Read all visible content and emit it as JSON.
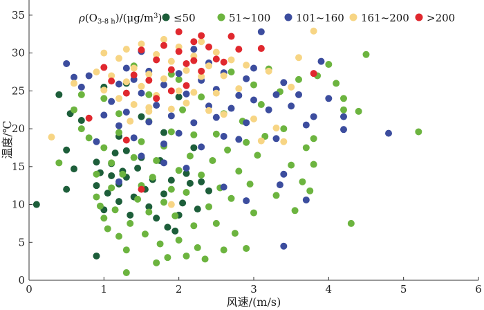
{
  "chart_data": {
    "type": "scatter",
    "xlabel": "风速/(m/s)",
    "ylabel": "温度/℃",
    "xlim": [
      0,
      6
    ],
    "ylim": [
      0,
      37
    ],
    "xticks": [
      "0",
      "1",
      "2",
      "3",
      "4",
      "5",
      "6"
    ],
    "yticks": [
      "0",
      "5",
      "10",
      "15",
      "20",
      "25",
      "30",
      "35"
    ],
    "legend": {
      "title": "ρ(O3-8 h)/(μg/m3)",
      "placement": "top",
      "items": [
        {
          "label": "≤50",
          "color": "#1d5e3a"
        },
        {
          "label": "51~100",
          "color": "#6cb43f"
        },
        {
          "label": "101~160",
          "color": "#3c4d9e"
        },
        {
          "label": "161~200",
          "color": "#f7d584"
        },
        {
          "label": ">200",
          "color": "#e0282e"
        }
      ]
    },
    "series": [
      {
        "name": "≤50",
        "color": "#1d5e3a",
        "points": [
          [
            0.1,
            10
          ],
          [
            0.4,
            24.5
          ],
          [
            0.5,
            17.2
          ],
          [
            0.6,
            14.7
          ],
          [
            0.9,
            3.2
          ],
          [
            0.9,
            15.6
          ],
          [
            0.9,
            12.5
          ],
          [
            0.95,
            14.2
          ],
          [
            1.0,
            9.3
          ],
          [
            1.05,
            11.5
          ],
          [
            1.1,
            13.8
          ],
          [
            1.1,
            15.4
          ],
          [
            1.15,
            16.8
          ],
          [
            1.2,
            12.7
          ],
          [
            1.2,
            10.4
          ],
          [
            1.25,
            14.4
          ],
          [
            1.3,
            13.6
          ],
          [
            1.3,
            17.1
          ],
          [
            1.35,
            8.6
          ],
          [
            1.4,
            11.0
          ],
          [
            1.45,
            14.8
          ],
          [
            1.5,
            16.2
          ],
          [
            1.55,
            12.0
          ],
          [
            1.6,
            9.7
          ],
          [
            1.65,
            13.3
          ],
          [
            1.7,
            8.2
          ],
          [
            1.75,
            15.8
          ],
          [
            1.8,
            11.4
          ],
          [
            1.85,
            7.0
          ],
          [
            1.9,
            13.2
          ],
          [
            1.95,
            6.5
          ],
          [
            2.0,
            8.6
          ],
          [
            2.05,
            10.2
          ],
          [
            2.1,
            14.1
          ],
          [
            2.15,
            12.8
          ],
          [
            2.2,
            17.5
          ],
          [
            2.25,
            9.4
          ],
          [
            2.3,
            13.0
          ],
          [
            2.4,
            11.8
          ],
          [
            0.55,
            22.0
          ],
          [
            0.7,
            21.1
          ],
          [
            1.0,
            25.5
          ],
          [
            1.2,
            19.0
          ],
          [
            1.5,
            21.6
          ],
          [
            1.8,
            19.5
          ],
          [
            2.0,
            24.2
          ],
          [
            1.3,
            26.0
          ],
          [
            0.5,
            12.0
          ]
        ]
      },
      {
        "name": "51~100",
        "color": "#6cb43f",
        "points": [
          [
            0.4,
            15.5
          ],
          [
            0.6,
            22.5
          ],
          [
            0.7,
            20.0
          ],
          [
            0.7,
            24.5
          ],
          [
            0.8,
            18.8
          ],
          [
            0.9,
            14.0
          ],
          [
            0.9,
            11.0
          ],
          [
            0.95,
            9.8
          ],
          [
            1.0,
            17.5
          ],
          [
            1.0,
            8.2
          ],
          [
            1.05,
            6.8
          ],
          [
            1.1,
            15.5
          ],
          [
            1.1,
            12.2
          ],
          [
            1.15,
            9.3
          ],
          [
            1.2,
            5.8
          ],
          [
            1.2,
            19.5
          ],
          [
            1.25,
            14.0
          ],
          [
            1.3,
            1.0
          ],
          [
            1.3,
            4.0
          ],
          [
            1.35,
            7.5
          ],
          [
            1.4,
            16.2
          ],
          [
            1.45,
            10.7
          ],
          [
            1.5,
            12.5
          ],
          [
            1.5,
            18.3
          ],
          [
            1.55,
            6.1
          ],
          [
            1.6,
            9.0
          ],
          [
            1.6,
            21.0
          ],
          [
            1.65,
            13.6
          ],
          [
            1.7,
            2.3
          ],
          [
            1.7,
            15.8
          ],
          [
            1.75,
            4.8
          ],
          [
            1.8,
            10.3
          ],
          [
            1.8,
            17.7
          ],
          [
            1.85,
            3.0
          ],
          [
            1.9,
            12.0
          ],
          [
            1.9,
            19.6
          ],
          [
            1.95,
            8.5
          ],
          [
            2.0,
            5.3
          ],
          [
            2.0,
            14.5
          ],
          [
            2.05,
            22.5
          ],
          [
            2.1,
            3.2
          ],
          [
            2.1,
            11.6
          ],
          [
            2.15,
            16.4
          ],
          [
            2.2,
            7.2
          ],
          [
            2.2,
            19.2
          ],
          [
            2.25,
            4.3
          ],
          [
            2.3,
            13.9
          ],
          [
            2.35,
            2.8
          ],
          [
            2.4,
            9.7
          ],
          [
            2.45,
            15.8
          ],
          [
            2.5,
            7.5
          ],
          [
            2.55,
            12.2
          ],
          [
            2.6,
            4.0
          ],
          [
            2.65,
            17.2
          ],
          [
            2.7,
            10.8
          ],
          [
            2.75,
            6.2
          ],
          [
            2.8,
            14.4
          ],
          [
            2.85,
            21.0
          ],
          [
            2.9,
            4.2
          ],
          [
            2.95,
            12.7
          ],
          [
            3.0,
            8.9
          ],
          [
            3.05,
            16.5
          ],
          [
            3.1,
            23.2
          ],
          [
            3.15,
            19.0
          ],
          [
            3.2,
            27.9
          ],
          [
            3.3,
            11.2
          ],
          [
            3.35,
            24.9
          ],
          [
            3.4,
            20.0
          ],
          [
            3.5,
            15.2
          ],
          [
            3.55,
            9.2
          ],
          [
            3.6,
            26.5
          ],
          [
            3.65,
            13.0
          ],
          [
            3.7,
            17.5
          ],
          [
            3.75,
            11.8
          ],
          [
            3.8,
            15.3
          ],
          [
            3.85,
            27.0
          ],
          [
            4.0,
            28.5
          ],
          [
            4.1,
            26.0
          ],
          [
            4.2,
            24.0
          ],
          [
            4.2,
            22.5
          ],
          [
            4.3,
            7.5
          ],
          [
            4.4,
            22.3
          ],
          [
            4.5,
            29.8
          ],
          [
            5.2,
            19.6
          ],
          [
            3.8,
            18.7
          ],
          [
            2.5,
            19.3
          ],
          [
            2.3,
            24.2
          ],
          [
            2.0,
            26.5
          ],
          [
            1.6,
            24.5
          ],
          [
            1.4,
            28.3
          ],
          [
            1.9,
            27.2
          ],
          [
            2.7,
            27.5
          ],
          [
            3.0,
            25.8
          ],
          [
            2.6,
            22.0
          ],
          [
            2.9,
            18.2
          ],
          [
            1.2,
            22.0
          ],
          [
            1.0,
            24.0
          ]
        ]
      },
      {
        "name": "101~160",
        "color": "#3c4d9e",
        "points": [
          [
            0.5,
            28.6
          ],
          [
            0.6,
            26.8
          ],
          [
            0.7,
            25.5
          ],
          [
            0.8,
            27.0
          ],
          [
            0.9,
            18.3
          ],
          [
            1.0,
            21.8
          ],
          [
            1.1,
            23.6
          ],
          [
            1.2,
            25.9
          ],
          [
            1.2,
            20.4
          ],
          [
            1.3,
            28.0
          ],
          [
            1.3,
            22.2
          ],
          [
            1.4,
            26.5
          ],
          [
            1.4,
            18.8
          ],
          [
            1.5,
            24.7
          ],
          [
            1.5,
            30.2
          ],
          [
            1.6,
            20.9
          ],
          [
            1.6,
            27.6
          ],
          [
            1.7,
            23.1
          ],
          [
            1.8,
            25.8
          ],
          [
            1.8,
            18.0
          ],
          [
            1.9,
            21.7
          ],
          [
            2.0,
            27.3
          ],
          [
            2.0,
            19.4
          ],
          [
            2.1,
            24.6
          ],
          [
            2.2,
            30.5
          ],
          [
            2.2,
            20.8
          ],
          [
            2.3,
            26.4
          ],
          [
            2.3,
            17.6
          ],
          [
            2.4,
            23.0
          ],
          [
            2.4,
            28.7
          ],
          [
            2.5,
            21.5
          ],
          [
            2.5,
            25.2
          ],
          [
            2.6,
            19.0
          ],
          [
            2.6,
            27.4
          ],
          [
            2.7,
            22.7
          ],
          [
            2.8,
            24.4
          ],
          [
            2.8,
            18.6
          ],
          [
            2.9,
            26.6
          ],
          [
            2.9,
            20.8
          ],
          [
            3.0,
            23.8
          ],
          [
            3.0,
            28.0
          ],
          [
            3.1,
            32.8
          ],
          [
            3.2,
            22.5
          ],
          [
            3.3,
            24.5
          ],
          [
            3.3,
            18.7
          ],
          [
            3.4,
            26.1
          ],
          [
            3.4,
            4.5
          ],
          [
            3.4,
            14.0
          ],
          [
            3.5,
            23.0
          ],
          [
            3.6,
            24.5
          ],
          [
            3.7,
            10.6
          ],
          [
            3.7,
            20.5
          ],
          [
            3.8,
            21.6
          ],
          [
            3.9,
            28.9
          ],
          [
            4.0,
            24.0
          ],
          [
            4.2,
            19.9
          ],
          [
            4.2,
            21.6
          ],
          [
            4.8,
            19.4
          ],
          [
            2.9,
            10.5
          ],
          [
            3.35,
            12.6
          ],
          [
            1.8,
            15.5
          ],
          [
            2.1,
            14.8
          ],
          [
            1.5,
            16.4
          ],
          [
            1.2,
            13.0
          ],
          [
            2.6,
            12.3
          ]
        ]
      },
      {
        "name": "161~200",
        "color": "#f7d584",
        "points": [
          [
            0.3,
            18.9
          ],
          [
            0.6,
            26.0
          ],
          [
            0.9,
            27.5
          ],
          [
            1.0,
            25.1
          ],
          [
            1.0,
            30.0
          ],
          [
            1.1,
            27.0
          ],
          [
            1.2,
            24.0
          ],
          [
            1.2,
            29.3
          ],
          [
            1.3,
            26.2
          ],
          [
            1.3,
            30.5
          ],
          [
            1.4,
            23.2
          ],
          [
            1.4,
            28.0
          ],
          [
            1.5,
            25.6
          ],
          [
            1.5,
            31.2
          ],
          [
            1.6,
            22.8
          ],
          [
            1.6,
            27.2
          ],
          [
            1.7,
            29.8
          ],
          [
            1.7,
            24.4
          ],
          [
            1.8,
            31.8
          ],
          [
            1.8,
            26.6
          ],
          [
            1.9,
            22.6
          ],
          [
            1.9,
            28.9
          ],
          [
            2.0,
            30.8
          ],
          [
            2.0,
            25.0
          ],
          [
            2.1,
            27.7
          ],
          [
            2.1,
            23.4
          ],
          [
            2.2,
            29.6
          ],
          [
            2.2,
            24.8
          ],
          [
            2.3,
            31.5
          ],
          [
            2.3,
            26.9
          ],
          [
            2.4,
            22.4
          ],
          [
            2.4,
            28.3
          ],
          [
            2.5,
            30.1
          ],
          [
            2.5,
            24.7
          ],
          [
            2.6,
            27.0
          ],
          [
            2.6,
            21.9
          ],
          [
            2.7,
            29.1
          ],
          [
            2.8,
            25.3
          ],
          [
            2.9,
            28.4
          ],
          [
            3.0,
            21.3
          ],
          [
            3.1,
            18.4
          ],
          [
            3.2,
            27.6
          ],
          [
            3.3,
            20.1
          ],
          [
            3.4,
            18.3
          ],
          [
            3.6,
            29.4
          ],
          [
            3.8,
            32.9
          ],
          [
            3.5,
            25.5
          ],
          [
            1.6,
            22.3
          ],
          [
            1.35,
            21.0
          ],
          [
            1.9,
            10.0
          ]
        ]
      },
      {
        "name": ">200",
        "color": "#e0282e",
        "points": [
          [
            0.8,
            21.4
          ],
          [
            1.0,
            28.1
          ],
          [
            1.1,
            26.3
          ],
          [
            1.3,
            24.7
          ],
          [
            1.3,
            18.5
          ],
          [
            1.4,
            27.1
          ],
          [
            1.5,
            30.4
          ],
          [
            1.5,
            12.0
          ],
          [
            1.6,
            26.4
          ],
          [
            1.7,
            29.1
          ],
          [
            1.7,
            24.0
          ],
          [
            1.8,
            31.0
          ],
          [
            1.9,
            27.8
          ],
          [
            1.9,
            25.0
          ],
          [
            2.0,
            32.8
          ],
          [
            2.0,
            30.2
          ],
          [
            2.1,
            28.6
          ],
          [
            2.1,
            25.7
          ],
          [
            2.2,
            31.5
          ],
          [
            2.2,
            29.0
          ],
          [
            2.3,
            32.3
          ],
          [
            2.3,
            27.6
          ],
          [
            2.4,
            30.8
          ],
          [
            2.5,
            29.2
          ],
          [
            2.6,
            28.8
          ],
          [
            2.7,
            32.2
          ],
          [
            2.8,
            30.5
          ],
          [
            3.1,
            30.6
          ],
          [
            3.8,
            27.3
          ]
        ]
      }
    ]
  }
}
